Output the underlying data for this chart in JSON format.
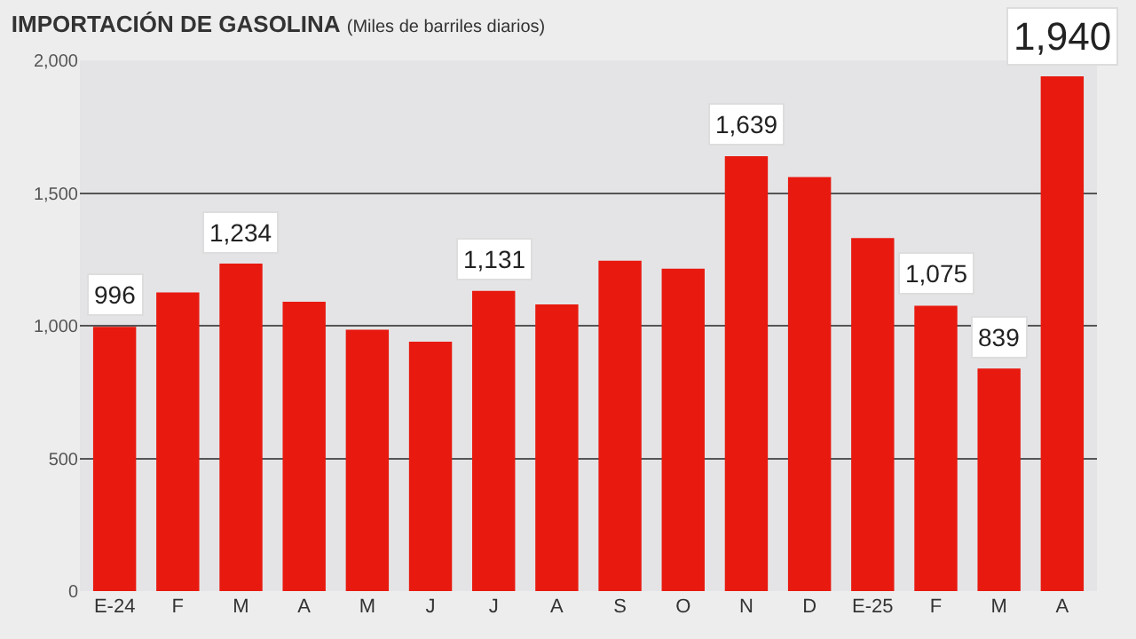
{
  "chart_data": {
    "type": "bar",
    "title": "IMPORTACIÓN DE GASOLINA",
    "subtitle": "(Miles de barriles diarios)",
    "categories": [
      "E-24",
      "F",
      "M",
      "A",
      "M",
      "J",
      "J",
      "A",
      "S",
      "O",
      "N",
      "D",
      "E-25",
      "F",
      "M",
      "A"
    ],
    "values": [
      996,
      1125,
      1234,
      1090,
      985,
      940,
      1131,
      1080,
      1245,
      1215,
      1639,
      1560,
      1330,
      1075,
      839,
      1940
    ],
    "value_labels": [
      "996",
      null,
      "1,234",
      null,
      null,
      null,
      "1,131",
      null,
      null,
      null,
      "1,639",
      null,
      null,
      "1,075",
      "839",
      "1,940"
    ],
    "color": "#e8190f",
    "ylim": [
      0,
      2000
    ],
    "yticks": [
      0,
      {
        "value": 500,
        "label": "500"
      },
      {
        "value": 1000,
        "label": "1,000"
      },
      {
        "value": 1500,
        "label": "1,500"
      },
      {
        "value": 2000,
        "label": "2,000"
      }
    ],
    "grid": "y"
  }
}
